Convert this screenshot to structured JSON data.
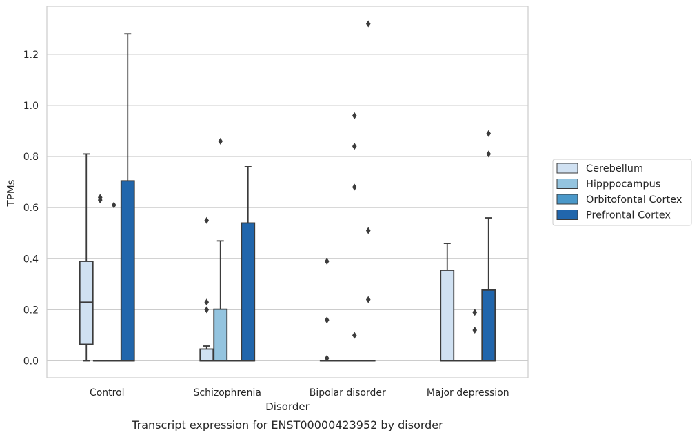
{
  "chart_data": {
    "type": "box",
    "xlabel": "Disorder",
    "ylabel": "TPMs",
    "caption": "Transcript expression for ENST00000423952 by disorder",
    "categories": [
      "Control",
      "Schizophrenia",
      "Bipolar disorder",
      "Major depression"
    ],
    "ylim": [
      -0.065,
      1.39
    ],
    "yticks": [
      0.0,
      0.2,
      0.4,
      0.6,
      0.8,
      1.0,
      1.2
    ],
    "ytick_labels": [
      "0.0",
      "0.2",
      "0.4",
      "0.6",
      "0.8",
      "1.0",
      "1.2"
    ],
    "grid": "horizontal",
    "legend_position": "right",
    "series": [
      {
        "name": "Cerebellum",
        "color": "#d0e1f2",
        "boxes": [
          {
            "whislo": 0.0,
            "q1": 0.065,
            "med": 0.23,
            "q3": 0.39,
            "whishi": 0.81,
            "fliers": []
          },
          {
            "whislo": 0.0,
            "q1": 0.0,
            "med": 0.0,
            "q3": 0.046,
            "whishi": 0.058,
            "fliers": [
              0.55,
              0.23,
              0.2
            ]
          },
          {
            "whislo": 0.0,
            "q1": 0.0,
            "med": 0.0,
            "q3": 0.0,
            "whishi": 0.0,
            "fliers": [
              0.39,
              0.16,
              0.01
            ]
          },
          {
            "whislo": 0.0,
            "q1": 0.0,
            "med": 0.0,
            "q3": 0.355,
            "whishi": 0.46,
            "fliers": []
          }
        ]
      },
      {
        "name": "Hipppocampus",
        "color": "#94c4df",
        "boxes": [
          {
            "whislo": 0.0,
            "q1": 0.0,
            "med": 0.0,
            "q3": 0.0,
            "whishi": 0.0,
            "fliers": [
              0.64,
              0.63
            ]
          },
          {
            "whislo": 0.0,
            "q1": 0.0,
            "med": 0.0,
            "q3": 0.202,
            "whishi": 0.47,
            "fliers": [
              0.86
            ]
          },
          {
            "whislo": 0.0,
            "q1": 0.0,
            "med": 0.0,
            "q3": 0.0,
            "whishi": 0.0,
            "fliers": []
          },
          {
            "whislo": 0.0,
            "q1": 0.0,
            "med": 0.0,
            "q3": 0.0,
            "whishi": 0.0,
            "fliers": []
          }
        ]
      },
      {
        "name": "Orbitofontal Cortex",
        "color": "#4a98c9",
        "boxes": [
          {
            "whislo": 0.0,
            "q1": 0.0,
            "med": 0.0,
            "q3": 0.0,
            "whishi": 0.0,
            "fliers": [
              0.61
            ]
          },
          {
            "whislo": 0.0,
            "q1": 0.0,
            "med": 0.0,
            "q3": 0.0,
            "whishi": 0.0,
            "fliers": []
          },
          {
            "whislo": 0.0,
            "q1": 0.0,
            "med": 0.0,
            "q3": 0.0,
            "whishi": 0.0,
            "fliers": [
              0.96,
              0.84,
              0.68,
              0.1
            ]
          },
          {
            "whislo": 0.0,
            "q1": 0.0,
            "med": 0.0,
            "q3": 0.0,
            "whishi": 0.0,
            "fliers": [
              0.19,
              0.19,
              0.12
            ]
          }
        ]
      },
      {
        "name": "Prefrontal Cortex",
        "color": "#2166ac",
        "boxes": [
          {
            "whislo": 0.0,
            "q1": 0.0,
            "med": 0.0,
            "q3": 0.705,
            "whishi": 1.28,
            "fliers": []
          },
          {
            "whislo": 0.0,
            "q1": 0.0,
            "med": 0.0,
            "q3": 0.54,
            "whishi": 0.76,
            "fliers": []
          },
          {
            "whislo": 0.0,
            "q1": 0.0,
            "med": 0.0,
            "q3": 0.0,
            "whishi": 0.0,
            "fliers": [
              1.32,
              0.51,
              0.24
            ]
          },
          {
            "whislo": 0.0,
            "q1": 0.0,
            "med": 0.0,
            "q3": 0.277,
            "whishi": 0.56,
            "fliers": [
              0.89,
              0.81
            ]
          }
        ]
      }
    ]
  }
}
